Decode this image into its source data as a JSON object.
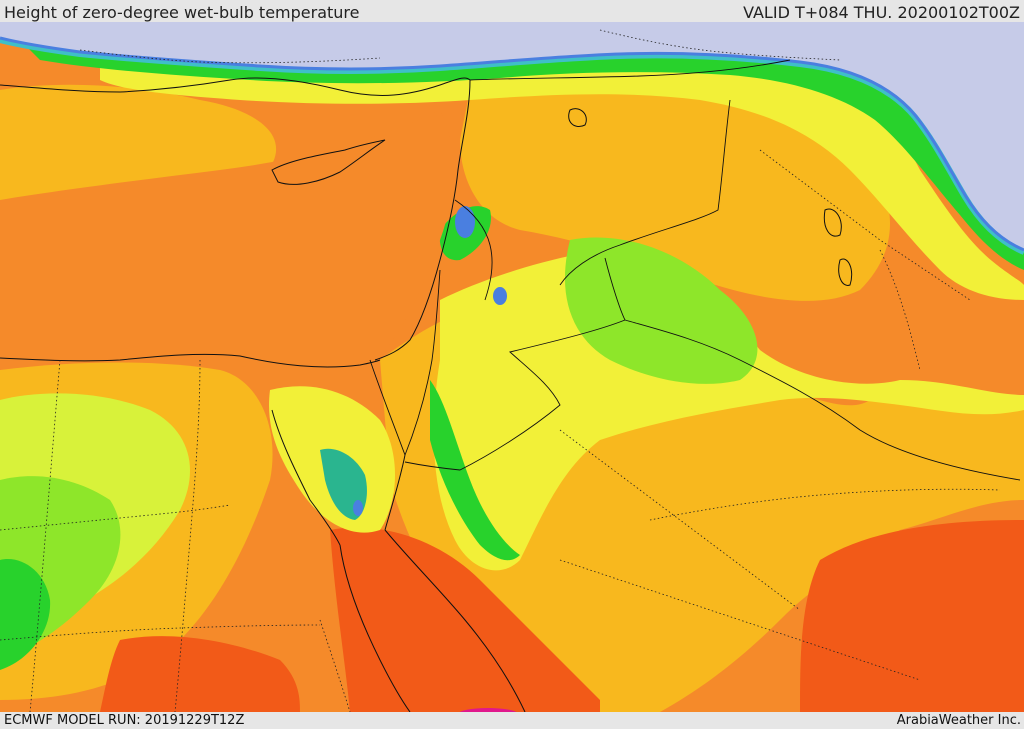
{
  "header": {
    "title": "Height of zero-degree wet-bulb temperature",
    "valid": "VALID T+084 THU. 20200102T00Z"
  },
  "footer": {
    "model_run": "ECMWF MODEL RUN: 20191229T12Z",
    "credit": "ArabiaWeather Inc."
  },
  "map": {
    "field": "zero-degree wet-bulb temperature height",
    "colors": {
      "lavender_lowest": "#c6cbe8",
      "blue": "#4a7fe0",
      "cyan": "#3fbfc8",
      "teal": "#2ab58f",
      "green": "#28d22c",
      "light_green": "#8ee62a",
      "yellow_green": "#d8f23a",
      "yellow": "#f2f038",
      "orange_yellow": "#f8b81e",
      "orange": "#f58a2a",
      "red_orange": "#f25a18",
      "magenta_highest": "#e0188c"
    },
    "overlays": [
      "coastlines",
      "country-borders",
      "province-borders"
    ]
  }
}
